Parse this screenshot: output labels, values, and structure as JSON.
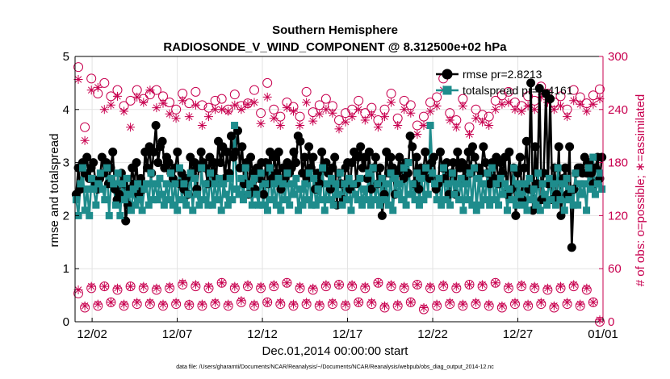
{
  "chart_data": {
    "type": "line",
    "title": "Southern Hemisphere",
    "subtitle": "RADIOSONDE_V_WIND_COMPONENT @ 8.312500e+02 hPa",
    "xlabel": "Dec.01,2014 00:00:00 start",
    "ylabel": "rmse and totalspread",
    "ylabel_right": "# of obs: o=possible; ∗=assimilated",
    "footnote": "data file: /Users/gharamti/Documents/NCAR/Reanalysis/~/Documents/NCAR/Reanalysis/webpub/obs_diag_output_2014-12.nc",
    "x_range": [
      0,
      31
    ],
    "ylim": [
      0,
      5
    ],
    "ylim_right": [
      0,
      300
    ],
    "x_ticks": [
      {
        "value": 1,
        "label": "12/02"
      },
      {
        "value": 6,
        "label": "12/07"
      },
      {
        "value": 11,
        "label": "12/12"
      },
      {
        "value": 16,
        "label": "12/17"
      },
      {
        "value": 21,
        "label": "12/22"
      },
      {
        "value": 26,
        "label": "12/27"
      },
      {
        "value": 31,
        "label": "01/01"
      }
    ],
    "y_ticks": [
      "0",
      "1",
      "2",
      "3",
      "4",
      "5"
    ],
    "y_ticks_right": [
      "0",
      "60",
      "120",
      "180",
      "240",
      "300"
    ],
    "colors": {
      "rmse": "#000000",
      "spread": "#1e8c8c",
      "obs": "#c8004f"
    },
    "series": [
      {
        "name": "rmse pr=2.8213",
        "marker": "filled-circle",
        "values": [
          2.4,
          2.9,
          2.5,
          3.0,
          2.8,
          3.1,
          2.7,
          2.9,
          3.0,
          2.6,
          2.5,
          2.7,
          3.1,
          2.8,
          3.0,
          2.6,
          2.9,
          3.2,
          2.5,
          2.3,
          2.4,
          2.8,
          2.6,
          1.9,
          2.2,
          2.5,
          2.9,
          2.6,
          3.0,
          2.4,
          2.7,
          2.5,
          3.2,
          2.9,
          3.3,
          2.8,
          3.2,
          3.7,
          3.0,
          3.3,
          3.4,
          2.9,
          3.1,
          3.0,
          2.8,
          2.7,
          2.9,
          3.2,
          2.6,
          2.8,
          2.5,
          2.7,
          2.4,
          3.1,
          2.8,
          3.0,
          2.5,
          2.9,
          3.2,
          3.0,
          2.9,
          2.6,
          3.1,
          2.8,
          3.0,
          2.7,
          3.4,
          3.0,
          3.3,
          2.7,
          3.2,
          2.8,
          3.5,
          3.1,
          3.2,
          3.6,
          2.9,
          3.3,
          2.6,
          3.0,
          2.4,
          3.1,
          2.8,
          2.5,
          2.9,
          2.7,
          3.0,
          2.4,
          3.0,
          2.6,
          3.2,
          2.7,
          3.1,
          2.8,
          3.2,
          2.5,
          2.9,
          2.7,
          3.0,
          2.8,
          2.9,
          3.2,
          3.0,
          3.5,
          3.4,
          2.8,
          3.1,
          2.7,
          3.3,
          2.9,
          3.1,
          2.5,
          2.8,
          2.6,
          3.2,
          2.9,
          3.0,
          2.8,
          2.5,
          2.9,
          3.1,
          2.2,
          2.8,
          2.6,
          2.3,
          2.9,
          3.0,
          2.5,
          3.0,
          3.2,
          2.6,
          3.1,
          3.3,
          2.9,
          3.1,
          2.7,
          3.2,
          2.5,
          2.9,
          3.1,
          2.6,
          2.9,
          2.0,
          2.4,
          3.2,
          2.8,
          3.1,
          2.9,
          2.4,
          2.8,
          3.1,
          2.9,
          2.7,
          3.0,
          2.8,
          3.5,
          3.3,
          2.6,
          3.1,
          2.5,
          2.9,
          2.8,
          3.2,
          2.9,
          2.7,
          3.0,
          3.1,
          2.5,
          2.6,
          3.2,
          2.9,
          2.7,
          3.0,
          2.4,
          2.8,
          3.0,
          2.4,
          3.2,
          2.9,
          3.0,
          2.7,
          2.9,
          3.2,
          2.8,
          3.3,
          3.1,
          2.9,
          2.9,
          2.8,
          3.3,
          3.0,
          2.8,
          2.6,
          3.0,
          2.7,
          3.1,
          2.6,
          3.0,
          2.8,
          3.1,
          2.4,
          3.2,
          2.5,
          2.9,
          2.0,
          2.8,
          3.1,
          2.3,
          2.9,
          3.4,
          2.5,
          4.5,
          2.1,
          3.3,
          2.6,
          4.4,
          2.3,
          2.8,
          4.3,
          2.6,
          4.2,
          2.3,
          2.9,
          2.4,
          3.3,
          2.0,
          2.7,
          2.9,
          2.4,
          3.3,
          1.4,
          2.5,
          2.8,
          2.9,
          2.9,
          2.8,
          3.1,
          2.8,
          3.0,
          2.8,
          2.6,
          2.9,
          3.1,
          2.7,
          3.1
        ]
      },
      {
        "name": "totalspread pr=2.4161",
        "marker": "filled-square",
        "values": [
          2.3,
          2.0,
          2.6,
          2.9,
          2.1,
          2.5,
          2.0,
          2.7,
          2.5,
          2.2,
          2.6,
          2.8,
          2.5,
          2.3,
          2.9,
          2.0,
          2.7,
          2.6,
          2.2,
          2.8,
          2.0,
          2.6,
          2.3,
          2.7,
          2.4,
          2.1,
          2.5,
          2.2,
          2.6,
          2.3,
          2.1,
          2.5,
          2.6,
          2.2,
          2.8,
          2.3,
          2.6,
          2.3,
          2.7,
          2.4,
          2.2,
          2.6,
          2.3,
          2.8,
          2.2,
          2.6,
          2.1,
          2.9,
          2.3,
          2.6,
          2.2,
          2.4,
          2.8,
          2.1,
          2.7,
          2.4,
          2.2,
          2.9,
          2.3,
          2.6,
          2.2,
          2.8,
          2.2,
          2.6,
          2.3,
          2.7,
          2.1,
          2.6,
          2.4,
          2.2,
          2.7,
          2.3,
          3.7,
          2.5,
          2.4,
          2.7,
          2.3,
          2.9,
          2.4,
          2.6,
          2.2,
          2.7,
          2.4,
          2.2,
          2.8,
          2.2,
          2.6,
          2.1,
          2.9,
          2.3,
          2.6,
          2.2,
          2.7,
          2.1,
          2.6,
          2.3,
          2.8,
          2.2,
          2.6,
          2.4,
          2.7,
          2.1,
          2.5,
          2.2,
          2.6,
          2.3,
          2.8,
          2.2,
          2.7,
          2.2,
          2.5,
          2.3,
          2.9,
          2.1,
          2.6,
          2.3,
          2.7,
          2.2,
          2.6,
          2.4,
          2.8,
          2.2,
          2.6,
          2.3,
          2.7,
          2.1,
          2.6,
          2.4,
          2.3,
          2.7,
          2.2,
          2.5,
          2.3,
          2.8,
          2.2,
          2.9,
          2.3,
          2.6,
          2.2,
          2.7,
          2.3,
          2.6,
          2.2,
          2.8,
          2.1,
          2.7,
          2.4,
          2.6,
          2.3,
          2.9,
          2.2,
          3.0,
          2.4,
          2.6,
          2.3,
          2.8,
          2.2,
          2.7,
          2.3,
          2.9,
          2.4,
          3.7,
          2.8,
          2.6,
          2.3,
          2.7,
          2.2,
          2.9,
          2.3,
          2.6,
          2.2,
          2.8,
          2.4,
          2.6,
          2.3,
          2.7,
          2.1,
          2.6,
          2.3,
          2.8,
          2.2,
          2.9,
          2.1,
          2.7,
          2.2,
          2.6,
          2.3,
          2.8,
          2.2,
          2.9,
          2.3,
          2.6,
          2.2,
          2.7,
          2.4,
          2.6,
          2.1,
          2.5,
          2.3,
          2.9,
          2.2,
          2.6,
          2.4,
          2.2,
          2.6,
          2.1,
          2.7,
          2.3,
          2.5,
          2.2,
          2.8,
          2.1,
          2.6,
          2.4,
          2.2,
          2.7,
          2.3,
          2.6,
          2.2,
          2.9,
          2.3,
          2.6,
          2.1,
          2.7,
          2.3,
          2.5,
          2.2,
          2.8,
          2.2,
          2.6,
          2.4,
          2.6,
          2.1,
          2.9,
          2.5,
          3.1,
          2.4,
          2.6,
          2.8,
          2.5
        ]
      },
      {
        "name": "possible (top row)",
        "marker": "open-circle",
        "axis": "right",
        "values": [
          288,
          220,
          275,
          258,
          270,
          255,
          262,
          244,
          250,
          262,
          252,
          257,
          262,
          255,
          248,
          240,
          258,
          247,
          260,
          245,
          242,
          250,
          252,
          240,
          257,
          244,
          247,
          262,
          236,
          270,
          240,
          232,
          248,
          243,
          232,
          260,
          237,
          245,
          252,
          244,
          228,
          236,
          240,
          250,
          236,
          242,
          228,
          240,
          258,
          230,
          250,
          245,
          222,
          232,
          248,
          254,
          275,
          236,
          228,
          252,
          220,
          240,
          234,
          232,
          250,
          256,
          260,
          248,
          244,
          255,
          250,
          266,
          258,
          248,
          255,
          240,
          262,
          254,
          247,
          256,
          263
        ]
      },
      {
        "name": "assimilated (top row)",
        "marker": "asterisk",
        "axis": "right",
        "values": [
          274,
          205,
          262,
          265,
          240,
          245,
          255,
          238,
          220,
          254,
          248,
          262,
          242,
          247,
          235,
          230,
          250,
          232,
          245,
          222,
          232,
          240,
          240,
          238,
          245,
          240,
          246,
          248,
          224,
          254,
          230,
          222,
          242,
          238,
          222,
          248,
          227,
          235,
          240,
          236,
          218,
          226,
          232,
          240,
          228,
          234,
          220,
          232,
          248,
          222,
          240,
          236,
          212,
          222,
          238,
          244,
          262,
          228,
          220,
          244,
          212,
          230,
          226,
          222,
          240,
          246,
          248,
          240,
          238,
          244,
          240,
          254,
          248,
          240,
          244,
          232,
          250,
          246,
          238,
          246,
          252
        ]
      },
      {
        "name": "possible (bottom row)",
        "marker": "open-circle",
        "axis": "right",
        "values": [
          32,
          16,
          38,
          18,
          40,
          22,
          36,
          18,
          40,
          20,
          38,
          20,
          36,
          18,
          38,
          20,
          42,
          19,
          40,
          18,
          38,
          20,
          44,
          18,
          38,
          22,
          40,
          18,
          38,
          22,
          40,
          20,
          44,
          18,
          38,
          20,
          36,
          18,
          40,
          20,
          42,
          18,
          40,
          22,
          38,
          20,
          44,
          16,
          40,
          18,
          38,
          22,
          42,
          14,
          38,
          18,
          40,
          20,
          38,
          18,
          42,
          20,
          40,
          18,
          44,
          16,
          38,
          20,
          40,
          18,
          38,
          20,
          36,
          16,
          38,
          20,
          40,
          18,
          36,
          22,
          0
        ]
      },
      {
        "name": "assimilated (bottom row)",
        "marker": "asterisk",
        "axis": "right",
        "values": [
          36,
          18,
          40,
          20,
          40,
          22,
          38,
          20,
          40,
          22,
          40,
          22,
          38,
          20,
          40,
          22,
          44,
          20,
          42,
          20,
          40,
          22,
          44,
          20,
          40,
          24,
          42,
          20,
          40,
          22,
          42,
          22,
          44,
          20,
          40,
          22,
          38,
          20,
          42,
          22,
          42,
          20,
          42,
          22,
          40,
          22,
          44,
          18,
          42,
          20,
          40,
          22,
          42,
          16,
          40,
          20,
          42,
          22,
          40,
          20,
          42,
          22,
          42,
          20,
          44,
          18,
          40,
          22,
          42,
          20,
          40,
          22,
          38,
          18,
          40,
          22,
          42,
          20,
          38,
          22,
          2
        ]
      }
    ],
    "legend": {
      "position": "top-right",
      "entries": [
        "rmse pr=2.8213",
        "totalspread pr=2.4161"
      ]
    }
  }
}
